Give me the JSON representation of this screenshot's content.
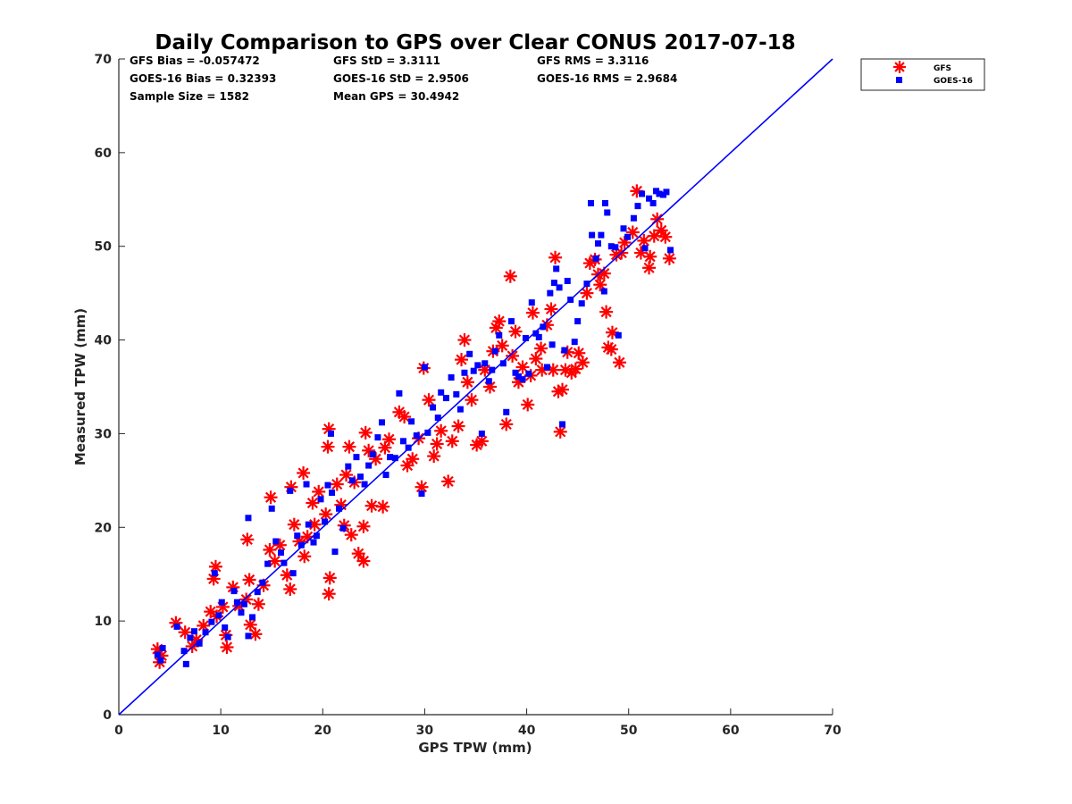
{
  "chart_data": {
    "type": "scatter",
    "title": "Daily Comparison to GPS over Clear CONUS 2017-07-18",
    "xlabel": "GPS TPW (mm)",
    "ylabel": "Measured TPW (mm)",
    "xlim": [
      0,
      70
    ],
    "ylim": [
      0,
      70
    ],
    "xticks": [
      "0",
      "10",
      "20",
      "30",
      "40",
      "50",
      "60",
      "70"
    ],
    "yticks": [
      "0",
      "10",
      "20",
      "30",
      "40",
      "50",
      "60",
      "70"
    ],
    "grid": false,
    "legend_position": "outside-top-right",
    "reference_line": {
      "name": "1:1 line",
      "x": [
        0,
        70
      ],
      "y": [
        0,
        70
      ],
      "color": "#0000ff"
    },
    "stats": [
      [
        "GFS Bias = -0.057472",
        "GFS StD = 3.3111",
        "GFS RMS = 3.3116"
      ],
      [
        "GOES-16 Bias = 0.32393",
        "GOES-16 StD = 2.9506",
        "GOES-16 RMS = 2.9684"
      ],
      [
        "Sample Size = 1582",
        "Mean GPS = 30.4942",
        ""
      ]
    ],
    "series": [
      {
        "name": "GFS",
        "marker": "asterisk",
        "color": "#ff0000",
        "points": [
          [
            3.8,
            7.0
          ],
          [
            4.2,
            6.3
          ],
          [
            4.0,
            5.6
          ],
          [
            5.6,
            9.8
          ],
          [
            6.5,
            8.8
          ],
          [
            7.2,
            7.3
          ],
          [
            7.6,
            8.0
          ],
          [
            8.3,
            9.5
          ],
          [
            9.0,
            11.0
          ],
          [
            9.5,
            15.8
          ],
          [
            9.3,
            14.5
          ],
          [
            9.6,
            10.5
          ],
          [
            10.2,
            11.5
          ],
          [
            10.5,
            8.5
          ],
          [
            10.6,
            7.2
          ],
          [
            11.2,
            13.6
          ],
          [
            11.8,
            11.6
          ],
          [
            12.5,
            12.3
          ],
          [
            12.8,
            14.4
          ],
          [
            12.6,
            18.7
          ],
          [
            12.9,
            9.6
          ],
          [
            13.4,
            8.6
          ],
          [
            13.7,
            11.8
          ],
          [
            14.2,
            13.8
          ],
          [
            14.8,
            17.6
          ],
          [
            14.9,
            23.2
          ],
          [
            15.3,
            16.4
          ],
          [
            15.8,
            18.1
          ],
          [
            16.5,
            14.9
          ],
          [
            16.9,
            24.3
          ],
          [
            16.8,
            13.4
          ],
          [
            17.2,
            20.3
          ],
          [
            17.7,
            18.5
          ],
          [
            18.1,
            25.8
          ],
          [
            18.2,
            16.9
          ],
          [
            18.5,
            19.0
          ],
          [
            19.0,
            22.6
          ],
          [
            19.2,
            20.3
          ],
          [
            19.6,
            23.8
          ],
          [
            20.3,
            21.4
          ],
          [
            20.6,
            30.5
          ],
          [
            20.5,
            28.6
          ],
          [
            20.6,
            12.9
          ],
          [
            20.7,
            14.6
          ],
          [
            21.4,
            24.6
          ],
          [
            21.8,
            22.4
          ],
          [
            22.1,
            20.2
          ],
          [
            22.3,
            25.6
          ],
          [
            22.6,
            28.6
          ],
          [
            22.8,
            19.2
          ],
          [
            23.1,
            24.8
          ],
          [
            23.5,
            17.2
          ],
          [
            24.0,
            16.4
          ],
          [
            24.0,
            20.1
          ],
          [
            24.2,
            30.1
          ],
          [
            24.5,
            28.2
          ],
          [
            24.8,
            22.3
          ],
          [
            25.2,
            27.3
          ],
          [
            25.9,
            22.2
          ],
          [
            26.1,
            28.5
          ],
          [
            26.5,
            29.4
          ],
          [
            27.5,
            32.3
          ],
          [
            28.0,
            31.8
          ],
          [
            28.3,
            26.6
          ],
          [
            28.8,
            27.3
          ],
          [
            29.4,
            29.5
          ],
          [
            29.7,
            24.3
          ],
          [
            29.9,
            37.0
          ],
          [
            30.4,
            33.6
          ],
          [
            30.9,
            27.6
          ],
          [
            31.2,
            28.9
          ],
          [
            31.6,
            30.3
          ],
          [
            32.3,
            24.9
          ],
          [
            32.7,
            29.2
          ],
          [
            33.3,
            30.8
          ],
          [
            33.6,
            37.9
          ],
          [
            33.9,
            40.0
          ],
          [
            34.2,
            35.5
          ],
          [
            34.6,
            33.6
          ],
          [
            35.1,
            28.8
          ],
          [
            35.6,
            29.2
          ],
          [
            35.9,
            36.8
          ],
          [
            36.4,
            35.0
          ],
          [
            36.7,
            38.8
          ],
          [
            37.0,
            41.3
          ],
          [
            37.3,
            42.0
          ],
          [
            37.6,
            39.4
          ],
          [
            38.0,
            31.0
          ],
          [
            38.4,
            46.8
          ],
          [
            38.6,
            38.3
          ],
          [
            38.9,
            40.9
          ],
          [
            39.2,
            35.5
          ],
          [
            39.6,
            37.1
          ],
          [
            40.1,
            33.1
          ],
          [
            40.4,
            36.2
          ],
          [
            40.6,
            42.9
          ],
          [
            40.9,
            38.0
          ],
          [
            41.4,
            39.1
          ],
          [
            41.5,
            36.8
          ],
          [
            42.0,
            41.6
          ],
          [
            42.4,
            43.3
          ],
          [
            42.6,
            36.8
          ],
          [
            42.8,
            48.8
          ],
          [
            43.1,
            34.5
          ],
          [
            43.3,
            30.2
          ],
          [
            43.5,
            34.7
          ],
          [
            43.8,
            36.8
          ],
          [
            44.0,
            38.7
          ],
          [
            44.4,
            36.5
          ],
          [
            44.8,
            36.9
          ],
          [
            45.1,
            38.6
          ],
          [
            45.5,
            37.6
          ],
          [
            45.9,
            45.0
          ],
          [
            46.2,
            48.2
          ],
          [
            46.7,
            48.6
          ],
          [
            47.0,
            47.0
          ],
          [
            47.2,
            45.9
          ],
          [
            47.6,
            47.1
          ],
          [
            47.8,
            43.0
          ],
          [
            48.0,
            39.2
          ],
          [
            48.4,
            40.8
          ],
          [
            48.3,
            39.0
          ],
          [
            48.8,
            49.1
          ],
          [
            49.1,
            37.6
          ],
          [
            49.3,
            49.3
          ],
          [
            49.6,
            50.4
          ],
          [
            50.4,
            51.5
          ],
          [
            50.8,
            55.9
          ],
          [
            51.2,
            49.3
          ],
          [
            51.5,
            50.6
          ],
          [
            52.0,
            47.7
          ],
          [
            52.1,
            48.9
          ],
          [
            52.5,
            51.1
          ],
          [
            52.8,
            52.9
          ],
          [
            53.2,
            51.7
          ],
          [
            53.6,
            51.0
          ],
          [
            54.0,
            48.7
          ]
        ]
      },
      {
        "name": "GOES-16",
        "marker": "square",
        "color": "#0000ff",
        "points": [
          [
            3.8,
            6.4
          ],
          [
            4.1,
            5.8
          ],
          [
            4.3,
            7.1
          ],
          [
            5.7,
            9.4
          ],
          [
            6.4,
            6.8
          ],
          [
            6.6,
            5.4
          ],
          [
            7.0,
            8.2
          ],
          [
            7.4,
            8.9
          ],
          [
            7.9,
            7.6
          ],
          [
            8.5,
            8.8
          ],
          [
            9.1,
            9.9
          ],
          [
            9.4,
            15.1
          ],
          [
            9.8,
            10.6
          ],
          [
            10.1,
            12.0
          ],
          [
            10.4,
            9.3
          ],
          [
            10.7,
            8.3
          ],
          [
            11.3,
            13.2
          ],
          [
            11.6,
            12.0
          ],
          [
            12.0,
            10.9
          ],
          [
            12.3,
            11.8
          ],
          [
            12.7,
            21.0
          ],
          [
            12.7,
            8.4
          ],
          [
            13.1,
            10.4
          ],
          [
            13.6,
            13.1
          ],
          [
            14.1,
            14.1
          ],
          [
            14.6,
            16.1
          ],
          [
            15.0,
            22.0
          ],
          [
            15.4,
            18.5
          ],
          [
            15.9,
            17.3
          ],
          [
            16.2,
            16.2
          ],
          [
            16.8,
            23.9
          ],
          [
            17.1,
            15.1
          ],
          [
            17.5,
            19.1
          ],
          [
            17.9,
            18.1
          ],
          [
            18.4,
            24.6
          ],
          [
            18.6,
            20.3
          ],
          [
            19.1,
            18.4
          ],
          [
            19.4,
            19.1
          ],
          [
            19.8,
            23.0
          ],
          [
            20.2,
            20.6
          ],
          [
            20.5,
            24.5
          ],
          [
            20.8,
            30.0
          ],
          [
            20.9,
            23.7
          ],
          [
            21.2,
            17.4
          ],
          [
            21.6,
            22.0
          ],
          [
            22.0,
            19.9
          ],
          [
            22.5,
            26.5
          ],
          [
            22.9,
            25.0
          ],
          [
            23.3,
            27.5
          ],
          [
            23.7,
            25.4
          ],
          [
            24.1,
            24.6
          ],
          [
            24.5,
            26.6
          ],
          [
            24.9,
            27.8
          ],
          [
            25.4,
            29.6
          ],
          [
            25.8,
            31.2
          ],
          [
            26.2,
            25.6
          ],
          [
            26.6,
            27.5
          ],
          [
            27.1,
            27.4
          ],
          [
            27.5,
            34.3
          ],
          [
            27.9,
            29.2
          ],
          [
            28.4,
            28.5
          ],
          [
            28.7,
            31.3
          ],
          [
            29.2,
            29.8
          ],
          [
            29.7,
            23.6
          ],
          [
            30.0,
            37.1
          ],
          [
            30.3,
            30.1
          ],
          [
            30.8,
            32.8
          ],
          [
            31.3,
            31.7
          ],
          [
            31.6,
            34.4
          ],
          [
            32.1,
            33.8
          ],
          [
            32.6,
            36.0
          ],
          [
            33.1,
            34.2
          ],
          [
            33.5,
            32.6
          ],
          [
            33.9,
            36.5
          ],
          [
            34.4,
            38.5
          ],
          [
            34.8,
            36.7
          ],
          [
            35.2,
            37.3
          ],
          [
            35.6,
            30.0
          ],
          [
            35.9,
            37.5
          ],
          [
            36.3,
            35.6
          ],
          [
            36.6,
            36.8
          ],
          [
            36.9,
            38.8
          ],
          [
            37.3,
            40.5
          ],
          [
            37.7,
            37.5
          ],
          [
            38.0,
            32.3
          ],
          [
            38.5,
            42.0
          ],
          [
            38.9,
            36.5
          ],
          [
            39.2,
            36.1
          ],
          [
            39.6,
            35.8
          ],
          [
            39.9,
            40.2
          ],
          [
            40.2,
            36.4
          ],
          [
            40.5,
            44.0
          ],
          [
            40.9,
            40.7
          ],
          [
            41.2,
            40.3
          ],
          [
            41.6,
            41.4
          ],
          [
            42.0,
            37.1
          ],
          [
            42.3,
            45.0
          ],
          [
            42.5,
            39.5
          ],
          [
            42.7,
            46.1
          ],
          [
            42.9,
            47.6
          ],
          [
            43.2,
            45.6
          ],
          [
            43.5,
            31.0
          ],
          [
            43.7,
            38.9
          ],
          [
            44.0,
            46.3
          ],
          [
            44.3,
            44.3
          ],
          [
            44.7,
            39.8
          ],
          [
            45.0,
            42.0
          ],
          [
            45.4,
            43.9
          ],
          [
            45.9,
            46.0
          ],
          [
            46.3,
            54.6
          ],
          [
            46.4,
            51.2
          ],
          [
            46.8,
            48.7
          ],
          [
            47.0,
            50.3
          ],
          [
            47.3,
            51.2
          ],
          [
            47.6,
            45.2
          ],
          [
            47.7,
            54.6
          ],
          [
            47.9,
            53.6
          ],
          [
            48.3,
            50.0
          ],
          [
            48.7,
            49.9
          ],
          [
            49.0,
            40.5
          ],
          [
            49.5,
            51.9
          ],
          [
            49.9,
            51.0
          ],
          [
            50.5,
            53.0
          ],
          [
            50.9,
            54.3
          ],
          [
            51.3,
            55.6
          ],
          [
            51.6,
            49.8
          ],
          [
            52.0,
            55.1
          ],
          [
            52.4,
            54.6
          ],
          [
            52.7,
            55.9
          ],
          [
            53.0,
            55.6
          ],
          [
            53.4,
            55.5
          ],
          [
            53.7,
            55.8
          ],
          [
            54.1,
            49.6
          ]
        ]
      }
    ]
  }
}
